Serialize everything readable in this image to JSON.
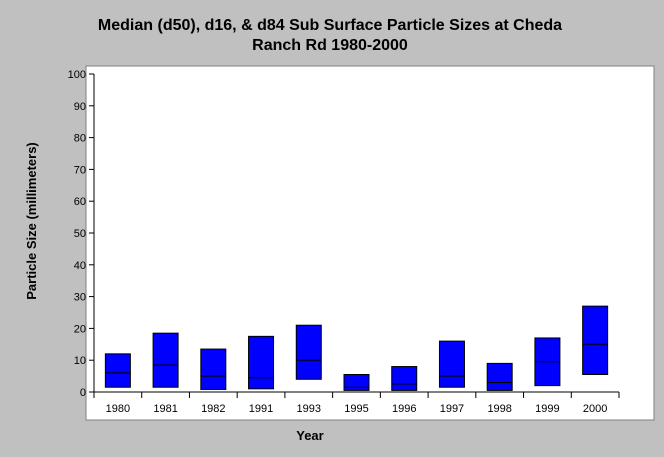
{
  "chart_data": {
    "type": "box",
    "title_lines": [
      "Median (d50), d16, & d84 Sub Surface Particle Sizes at Cheda",
      "Ranch Rd 1980-2000"
    ],
    "xlabel": "Year",
    "ylabel": "Particle Size (millimeters)",
    "ylim": [
      0,
      100
    ],
    "yticks": [
      0,
      10,
      20,
      30,
      40,
      50,
      60,
      70,
      80,
      90,
      100
    ],
    "categories": [
      "1980",
      "1981",
      "1982",
      "1991",
      "1993",
      "1995",
      "1996",
      "1997",
      "1998",
      "1999",
      "2000"
    ],
    "series": [
      {
        "name": "d16",
        "values": [
          1.5,
          1.5,
          0.8,
          1.0,
          4.0,
          0.5,
          0.5,
          1.5,
          0.5,
          2.0,
          5.5
        ]
      },
      {
        "name": "d50",
        "values": [
          6.0,
          8.5,
          5.0,
          4.5,
          10.0,
          1.5,
          2.5,
          5.0,
          3.0,
          9.5,
          15.0
        ]
      },
      {
        "name": "d84",
        "values": [
          12.0,
          18.5,
          13.5,
          17.5,
          21.0,
          5.5,
          8.0,
          16.0,
          9.0,
          17.0,
          27.0
        ]
      }
    ],
    "box_color": "#0000ff",
    "grid": false,
    "legend": "none"
  }
}
